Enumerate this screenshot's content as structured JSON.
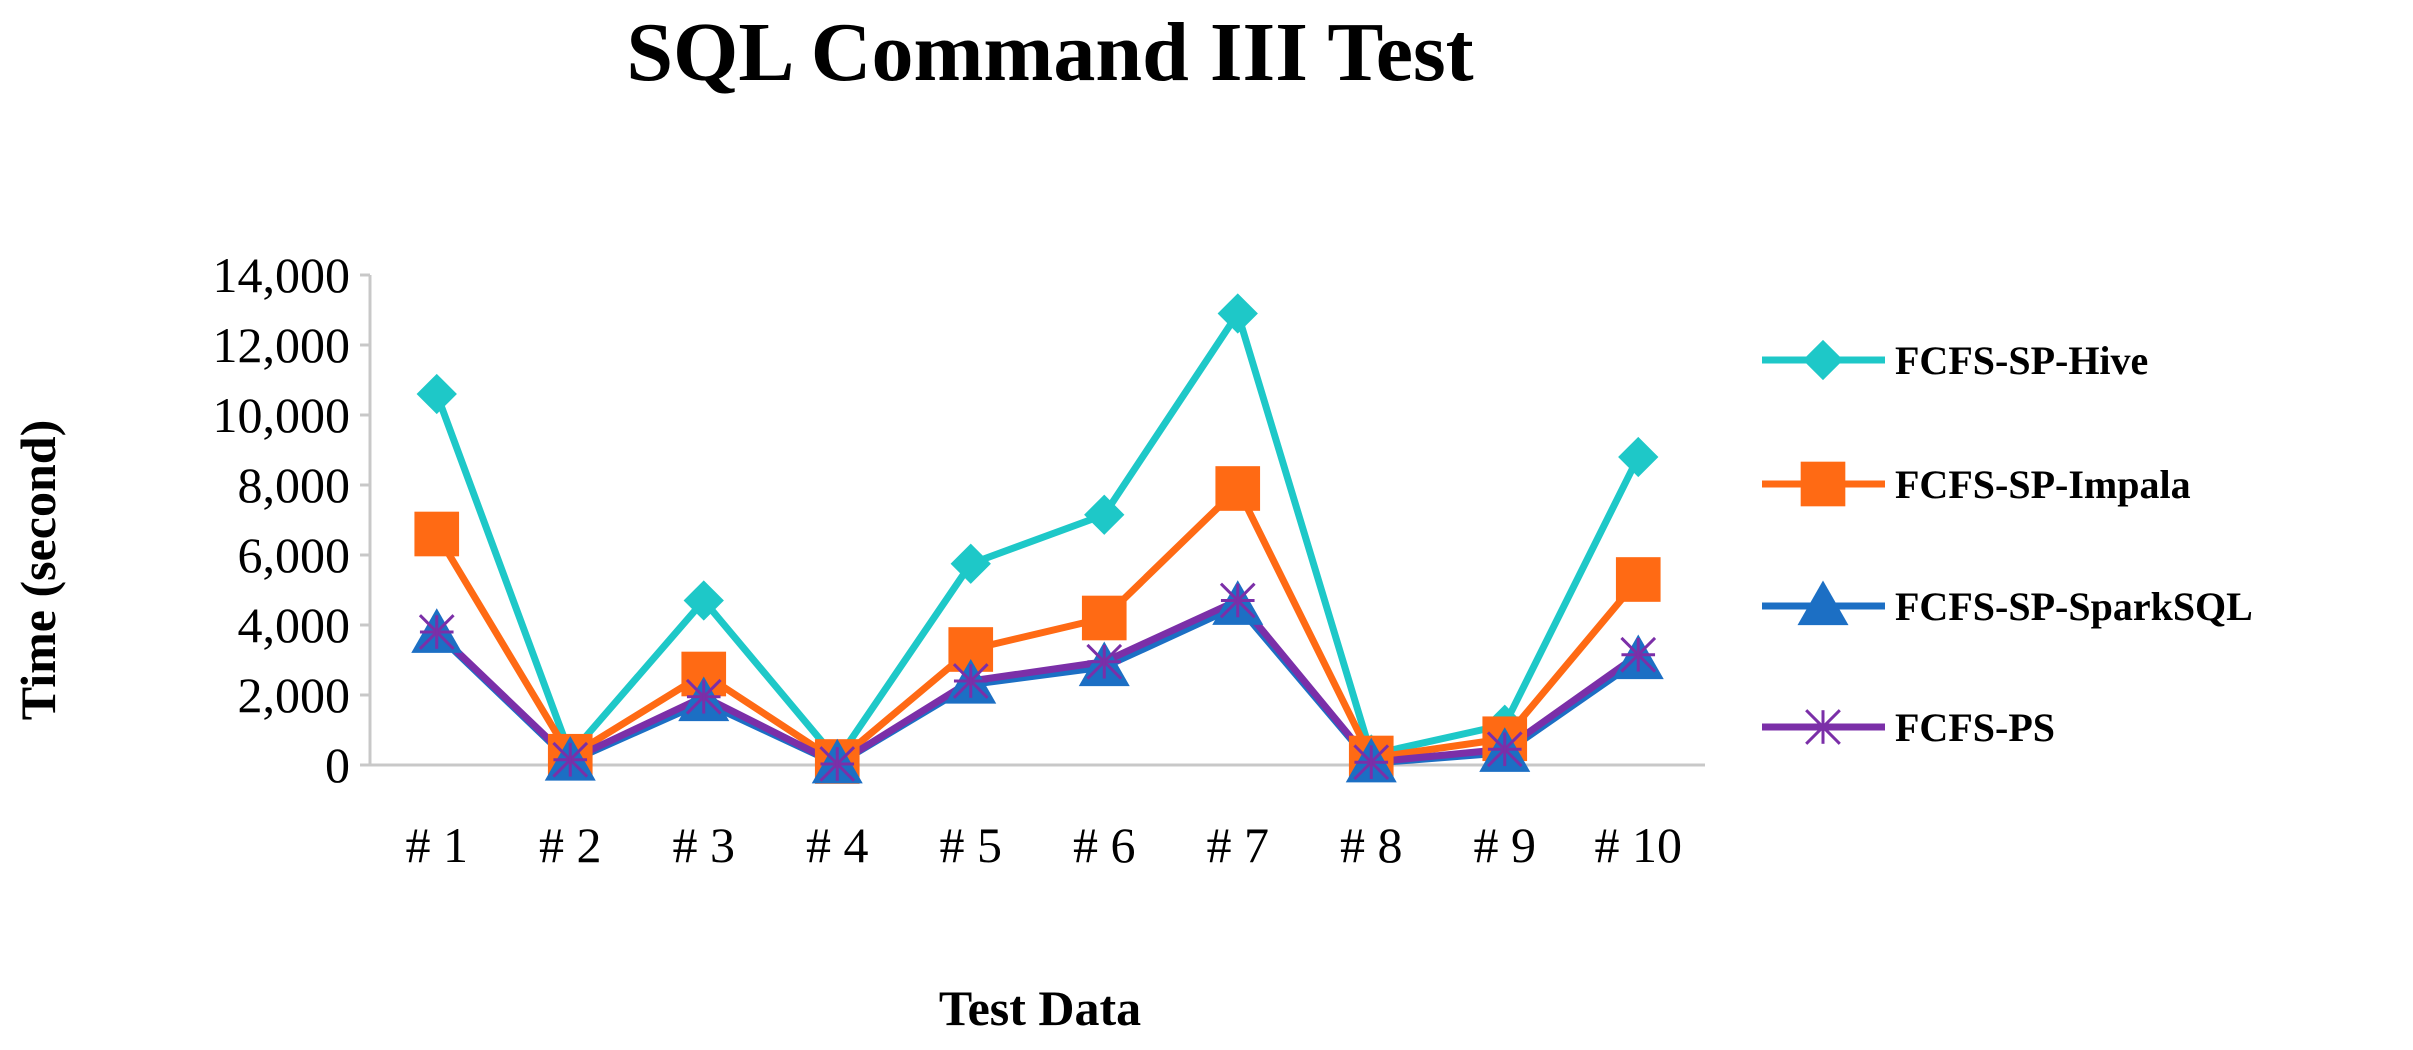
{
  "chart_data": {
    "type": "line",
    "title": "SQL Command III Test",
    "xlabel": "Test Data",
    "ylabel": "Time (second)",
    "categories": [
      "# 1",
      "# 2",
      "# 3",
      "# 4",
      "# 5",
      "# 6",
      "# 7",
      "# 8",
      "# 9",
      "# 10"
    ],
    "ylim": [
      0,
      14000
    ],
    "yticks": [
      0,
      2000,
      4000,
      6000,
      8000,
      10000,
      12000,
      14000
    ],
    "ytick_labels": [
      "0",
      "2,000",
      "4,000",
      "6,000",
      "8,000",
      "10,000",
      "12,000",
      "14,000"
    ],
    "grid": false,
    "legend_position": "right",
    "series": [
      {
        "name": "FCFS-SP-Hive",
        "color": "#1ec8c8",
        "marker": "diamond",
        "values": [
          10600,
          300,
          4700,
          150,
          5750,
          7150,
          12900,
          300,
          1150,
          8800
        ]
      },
      {
        "name": "FCFS-SP-Impala",
        "color": "#ff6a14",
        "marker": "square",
        "values": [
          6600,
          250,
          2600,
          100,
          3300,
          4200,
          7900,
          200,
          750,
          5300
        ]
      },
      {
        "name": "FCFS-SP-SparkSQL",
        "color": "#1c6fc4",
        "marker": "triangle",
        "values": [
          3750,
          100,
          1800,
          20,
          2300,
          2800,
          4550,
          50,
          350,
          3000
        ]
      },
      {
        "name": "FCFS-PS",
        "color": "#7b2fa8",
        "marker": "star",
        "values": [
          3800,
          150,
          1950,
          30,
          2400,
          2950,
          4700,
          80,
          450,
          3150
        ]
      }
    ]
  }
}
